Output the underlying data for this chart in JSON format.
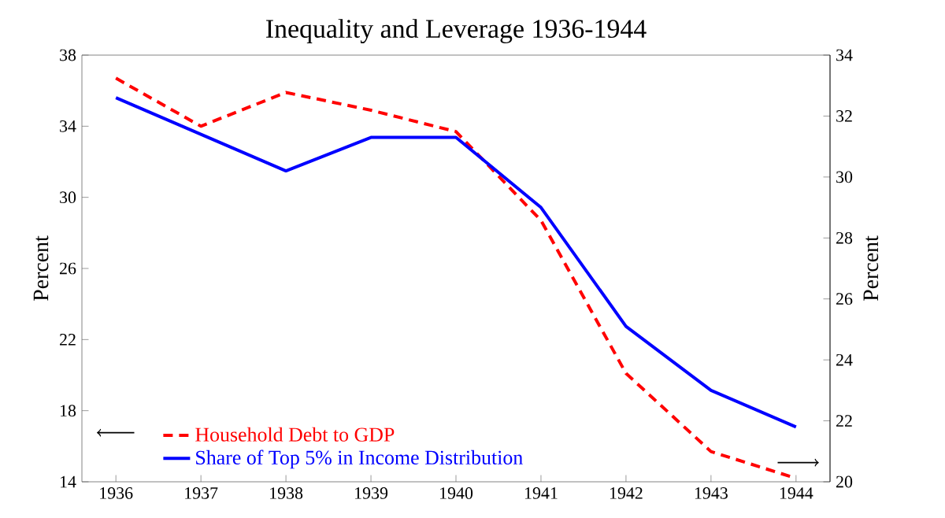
{
  "chart_data": {
    "type": "line",
    "title": "Inequality and Leverage 1936-1944",
    "categories": [
      "1936",
      "1937",
      "1938",
      "1939",
      "1940",
      "1941",
      "1942",
      "1943",
      "1944"
    ],
    "ylabel": "Percent",
    "y2label": "Percent",
    "ylim": [
      14,
      38
    ],
    "yticks": [
      14,
      18,
      22,
      26,
      30,
      34,
      38
    ],
    "y2lim": [
      20,
      34
    ],
    "y2ticks": [
      20,
      22,
      24,
      26,
      28,
      30,
      32,
      34
    ],
    "series": [
      {
        "name": "Household Debt to GDP",
        "color": "#ff0000",
        "line_style": "dashed",
        "values": [
          36.7,
          34.0,
          35.9,
          34.9,
          33.7,
          28.7,
          20.1,
          15.7,
          14.2
        ]
      },
      {
        "name": "Share of Top 5% in Income Distribution",
        "color": "#0000ff",
        "line_style": "solid",
        "axis": "y2",
        "values": [
          32.6,
          31.4,
          30.2,
          31.3,
          31.3,
          29.0,
          25.1,
          23.0,
          21.8
        ]
      }
    ],
    "grid": false,
    "legend": "bottom left",
    "marker": "none"
  }
}
